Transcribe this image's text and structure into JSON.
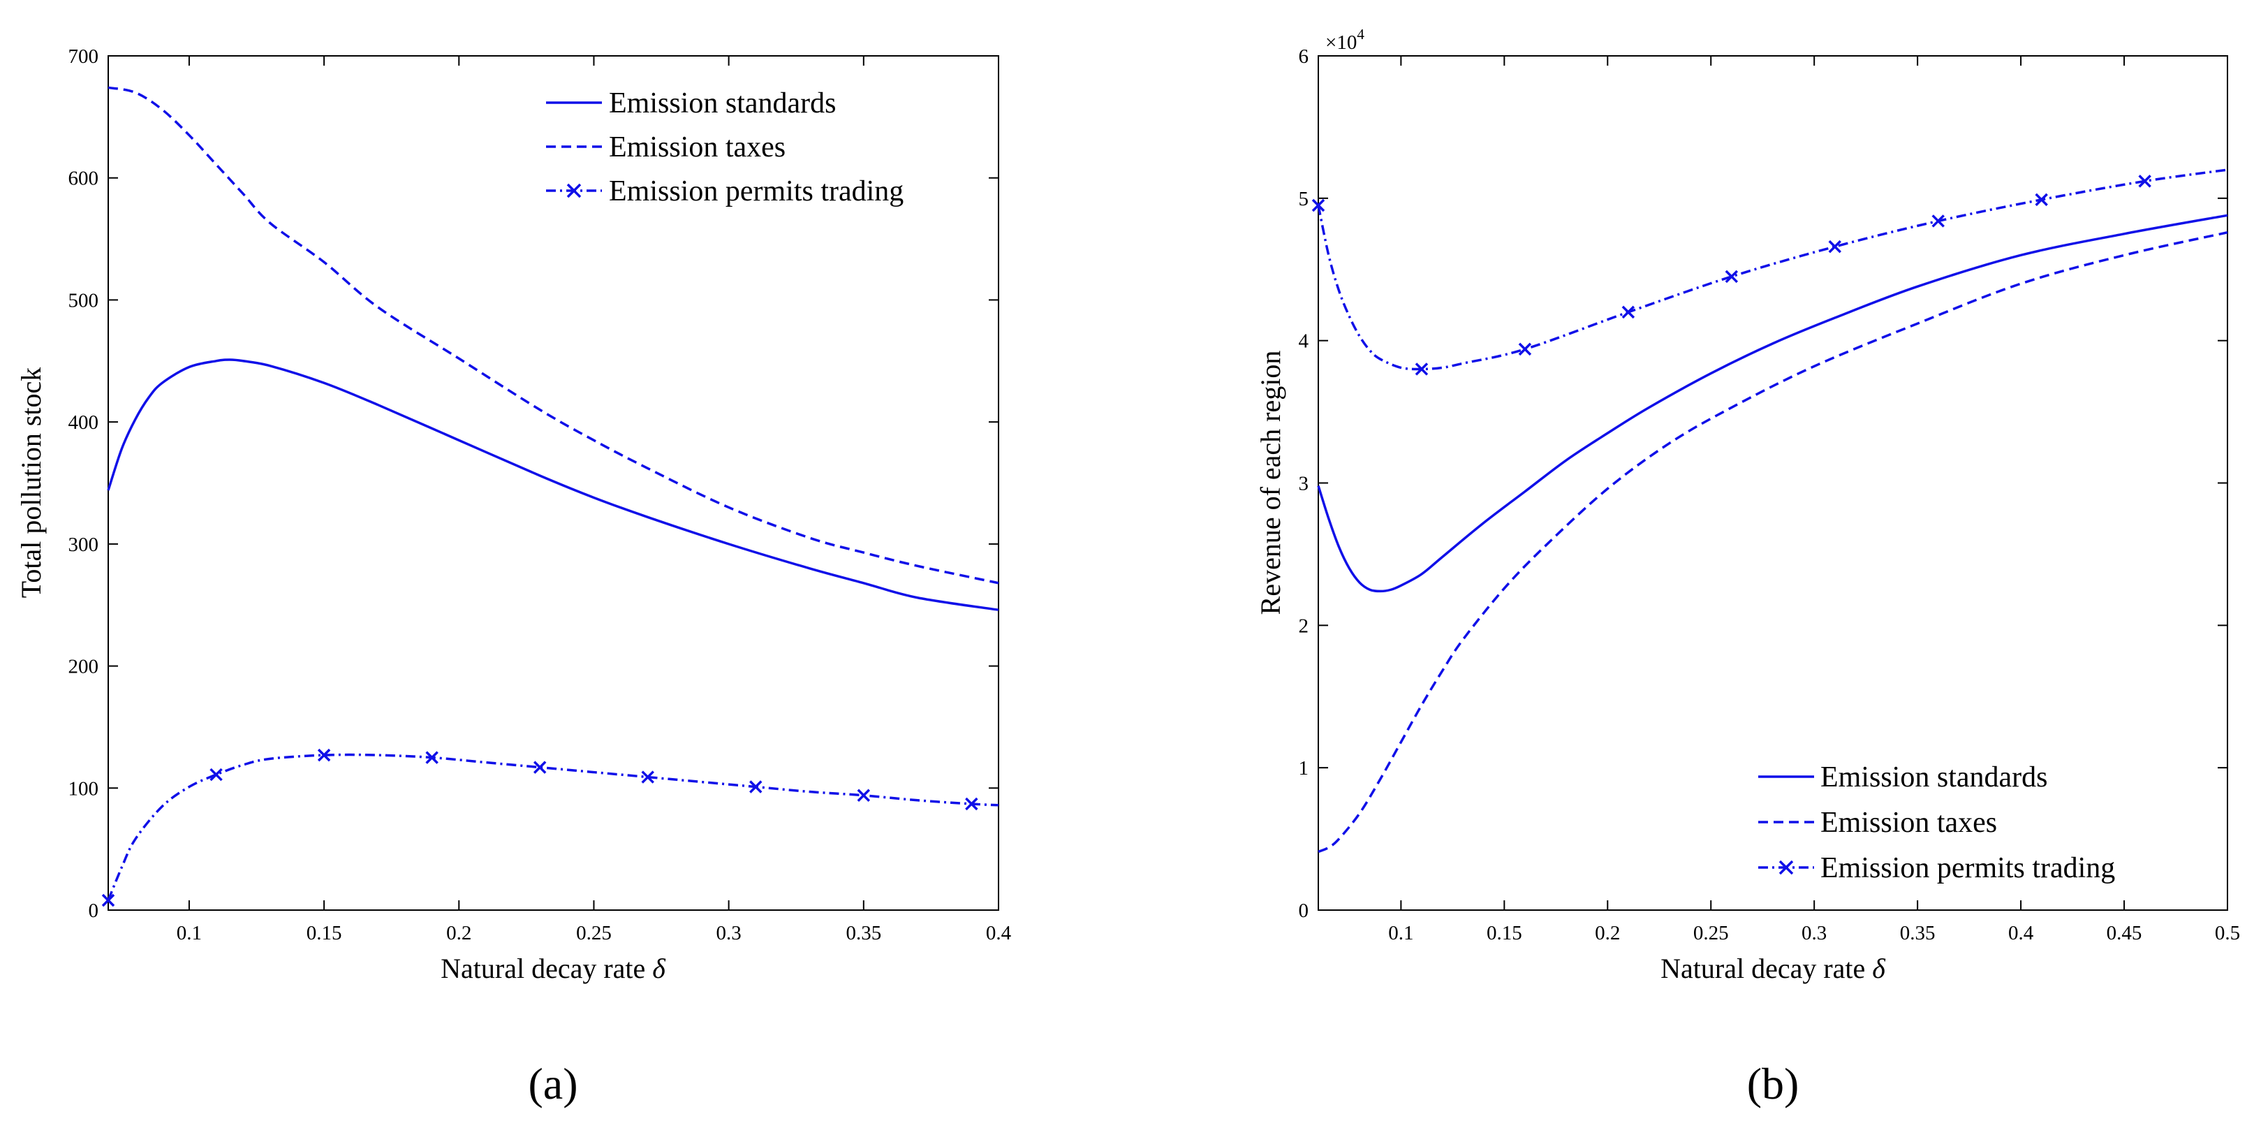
{
  "panel_labels": [
    "(a)",
    "(b)"
  ],
  "chart_data": [
    {
      "type": "line",
      "panel": "a",
      "title": "",
      "xlabel": "Natural decay rate",
      "xlabel_symbol": "δ",
      "ylabel": "Total pollution stock",
      "xlim": [
        0.07,
        0.4
      ],
      "ylim": [
        0,
        700
      ],
      "xticks": [
        0.1,
        0.15,
        0.2,
        0.25,
        0.3,
        0.35,
        0.4
      ],
      "xtick_labels": [
        "0.1",
        "0.15",
        "0.2",
        "0.25",
        "0.3",
        "0.35",
        "0.4"
      ],
      "yticks": [
        0,
        100,
        200,
        300,
        400,
        500,
        600,
        700
      ],
      "ytick_labels": [
        "0",
        "100",
        "200",
        "300",
        "400",
        "500",
        "600",
        "700"
      ],
      "legend_position": "top-right",
      "series": [
        {
          "name": "Emission standards",
          "style": "solid",
          "marker": "none",
          "x": [
            0.07,
            0.075,
            0.08,
            0.085,
            0.09,
            0.1,
            0.11,
            0.115,
            0.12,
            0.13,
            0.15,
            0.17,
            0.2,
            0.23,
            0.25,
            0.27,
            0.3,
            0.33,
            0.35,
            0.37,
            0.4
          ],
          "y": [
            344,
            378,
            402,
            420,
            432,
            445,
            450,
            451,
            450,
            446,
            432,
            414,
            385,
            356,
            338,
            322,
            300,
            280,
            268,
            256,
            246
          ]
        },
        {
          "name": "Emission taxes",
          "style": "dashed",
          "marker": "none",
          "x": [
            0.07,
            0.08,
            0.09,
            0.1,
            0.11,
            0.12,
            0.13,
            0.15,
            0.17,
            0.2,
            0.23,
            0.25,
            0.27,
            0.3,
            0.33,
            0.35,
            0.37,
            0.4
          ],
          "y": [
            674,
            670,
            656,
            635,
            611,
            587,
            563,
            531,
            494,
            452,
            410,
            385,
            362,
            330,
            305,
            293,
            282,
            268
          ]
        },
        {
          "name": "Emission permits trading",
          "style": "dashdot",
          "marker": "x",
          "x": [
            0.07,
            0.075,
            0.08,
            0.09,
            0.1,
            0.11,
            0.12,
            0.13,
            0.15,
            0.17,
            0.19,
            0.21,
            0.23,
            0.25,
            0.27,
            0.29,
            0.31,
            0.33,
            0.35,
            0.37,
            0.39,
            0.4
          ],
          "y": [
            8,
            35,
            58,
            85,
            101,
            111,
            119,
            124,
            127,
            127,
            125,
            121,
            117,
            113,
            109,
            105,
            101,
            97,
            94,
            90,
            87,
            86
          ],
          "marker_x": [
            0.07,
            0.11,
            0.15,
            0.19,
            0.23,
            0.27,
            0.31,
            0.35,
            0.39
          ],
          "marker_y": [
            8,
            111,
            127,
            125,
            117,
            109,
            101,
            94,
            87
          ]
        }
      ]
    },
    {
      "type": "line",
      "panel": "b",
      "title": "",
      "xlabel": "Natural decay rate",
      "xlabel_symbol": "δ",
      "ylabel": "Revenue of each region",
      "y_multiplier": "×10",
      "y_multiplier_exp": "4",
      "xlim": [
        0.06,
        0.5
      ],
      "ylim": [
        0,
        6
      ],
      "xticks": [
        0.1,
        0.15,
        0.2,
        0.25,
        0.3,
        0.35,
        0.4,
        0.45,
        0.5
      ],
      "xtick_labels": [
        "0.1",
        "0.15",
        "0.2",
        "0.25",
        "0.3",
        "0.35",
        "0.4",
        "0.45",
        "0.5"
      ],
      "yticks": [
        0,
        1,
        2,
        3,
        4,
        5,
        6
      ],
      "ytick_labels": [
        "0",
        "1",
        "2",
        "3",
        "4",
        "5",
        "6"
      ],
      "legend_position": "bottom-right",
      "series": [
        {
          "name": "Emission standards",
          "style": "solid",
          "marker": "none",
          "x": [
            0.06,
            0.065,
            0.07,
            0.075,
            0.08,
            0.085,
            0.09,
            0.095,
            0.1,
            0.11,
            0.12,
            0.14,
            0.16,
            0.18,
            0.2,
            0.22,
            0.25,
            0.28,
            0.31,
            0.35,
            0.4,
            0.45,
            0.5
          ],
          "y": [
            2.98,
            2.75,
            2.55,
            2.4,
            2.3,
            2.25,
            2.24,
            2.25,
            2.28,
            2.36,
            2.48,
            2.72,
            2.94,
            3.16,
            3.35,
            3.53,
            3.77,
            3.98,
            4.16,
            4.38,
            4.6,
            4.75,
            4.88
          ]
        },
        {
          "name": "Emission taxes",
          "style": "dashed",
          "marker": "none",
          "x": [
            0.06,
            0.065,
            0.07,
            0.08,
            0.09,
            0.1,
            0.11,
            0.12,
            0.13,
            0.15,
            0.17,
            0.2,
            0.23,
            0.26,
            0.3,
            0.35,
            0.4,
            0.45,
            0.5
          ],
          "y": [
            0.41,
            0.44,
            0.5,
            0.68,
            0.92,
            1.18,
            1.44,
            1.68,
            1.9,
            2.26,
            2.56,
            2.96,
            3.28,
            3.53,
            3.82,
            4.12,
            4.4,
            4.6,
            4.76
          ]
        },
        {
          "name": "Emission permits trading",
          "style": "dashdot",
          "marker": "x",
          "x": [
            0.06,
            0.065,
            0.07,
            0.075,
            0.08,
            0.085,
            0.09,
            0.1,
            0.11,
            0.12,
            0.13,
            0.16,
            0.21,
            0.26,
            0.31,
            0.36,
            0.41,
            0.46,
            0.5
          ],
          "y": [
            4.95,
            4.6,
            4.35,
            4.17,
            4.03,
            3.93,
            3.87,
            3.81,
            3.8,
            3.81,
            3.84,
            3.94,
            4.2,
            4.45,
            4.66,
            4.84,
            4.99,
            5.12,
            5.2
          ],
          "marker_x": [
            0.06,
            0.11,
            0.16,
            0.21,
            0.26,
            0.31,
            0.36,
            0.41,
            0.46
          ],
          "marker_y": [
            4.95,
            3.8,
            3.94,
            4.2,
            4.45,
            4.66,
            4.84,
            4.99,
            5.12
          ]
        }
      ]
    }
  ],
  "colors": {
    "line": "#1010e8",
    "axis": "#000000"
  }
}
